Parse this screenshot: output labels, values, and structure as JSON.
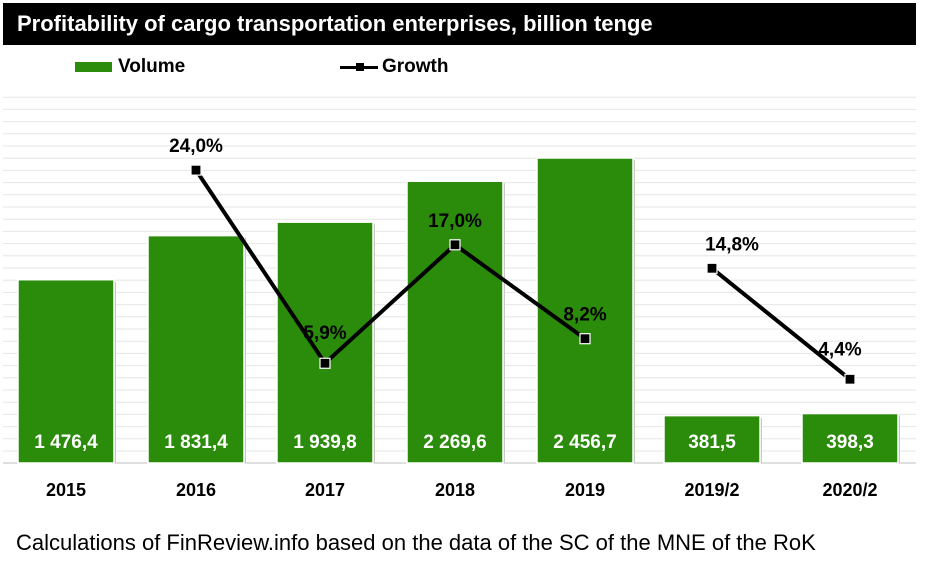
{
  "title": "Profitability of cargo transportation enterprises, billion tenge",
  "legend": {
    "volume_label": "Volume",
    "growth_label": "Growth"
  },
  "source": "Calculations of FinReview.info based on the data of the SC of the MNE of the RoK",
  "colors": {
    "bar": "#2a8c0a",
    "line": "#000000",
    "title_bg": "#000000",
    "gridline": "#e6e6e6"
  },
  "chart_data": {
    "type": "bar",
    "title": "Profitability of cargo transportation enterprises, billion tenge",
    "categories": [
      "2015",
      "2016",
      "2017",
      "2018",
      "2019",
      "2019/2",
      "2020/2"
    ],
    "series": [
      {
        "name": "Volume",
        "type": "bar",
        "values": [
          1476.4,
          1831.4,
          1939.8,
          2269.6,
          2456.7,
          381.5,
          398.3
        ],
        "labels": [
          "1 476,4",
          "1 831,4",
          "1 939,8",
          "2 269,6",
          "2 456,7",
          "381,5",
          "398,3"
        ]
      },
      {
        "name": "Growth",
        "type": "line",
        "values": [
          null,
          24.0,
          5.9,
          17.0,
          8.2,
          14.8,
          4.4
        ],
        "labels": [
          "",
          "24,0%",
          "5,9%",
          "17,0%",
          "8,2%",
          "14,8%",
          "4,4%"
        ],
        "segments": [
          [
            1,
            4
          ],
          [
            5,
            6
          ]
        ]
      }
    ],
    "grid": true,
    "legend_position": "top-left"
  }
}
